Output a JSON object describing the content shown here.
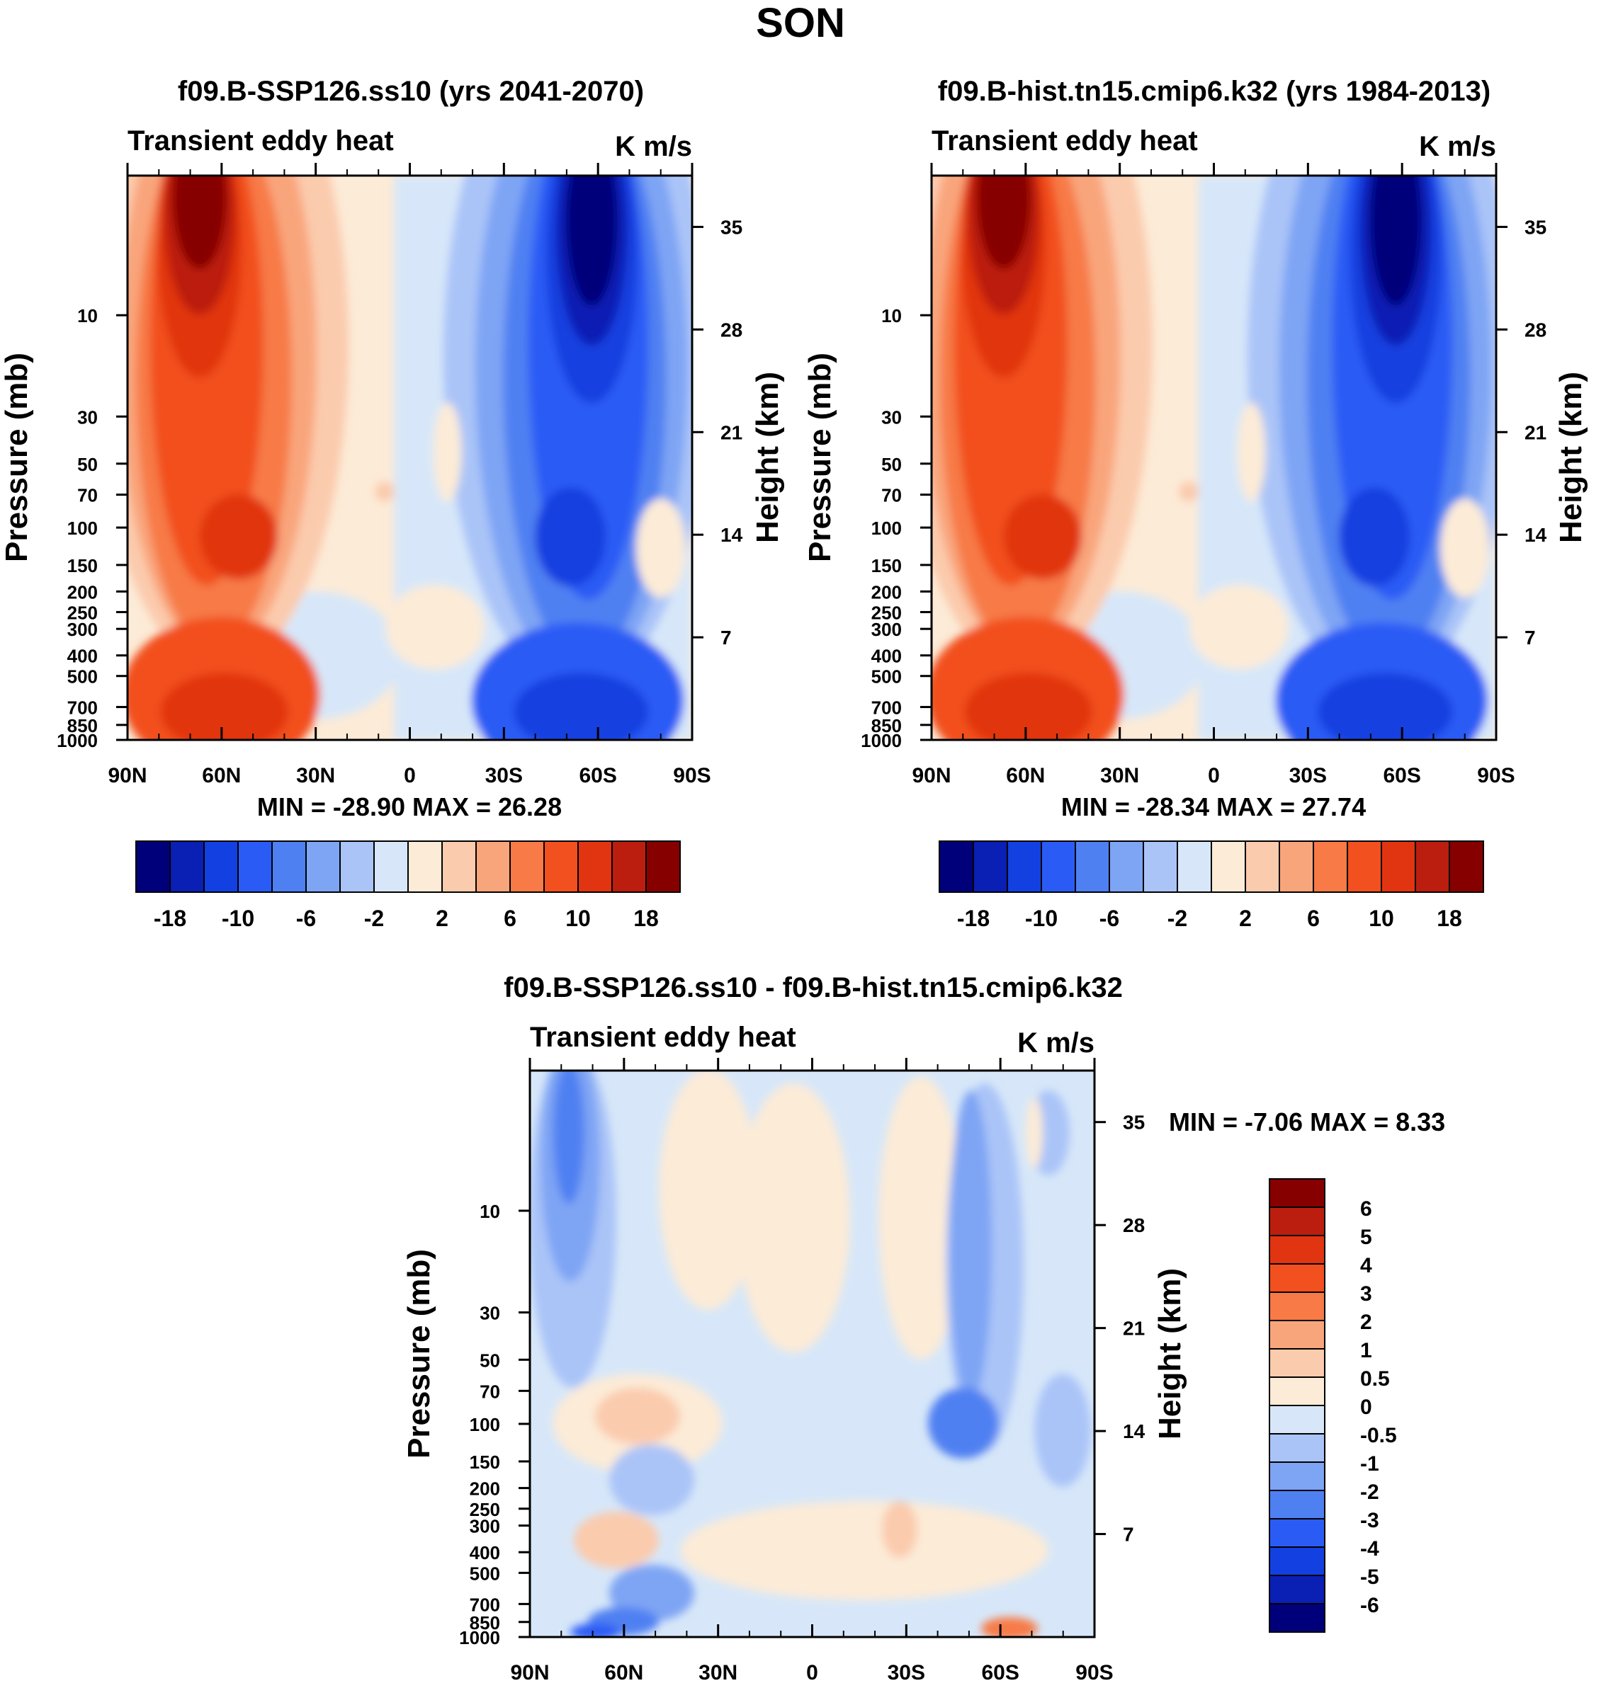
{
  "figure_title": "SON",
  "colors": {
    "diverging_16": [
      "#00007a",
      "#0a1fb4",
      "#1340e0",
      "#2a5cf5",
      "#4f80f2",
      "#7ea4f4",
      "#aac4f8",
      "#d7e7f9",
      "#fcebd7",
      "#fbcbad",
      "#f9a57c",
      "#f77a47",
      "#f2501f",
      "#e13411",
      "#bb1e0e",
      "#870000"
    ],
    "diff_14": [
      "#00007a",
      "#0a1fb4",
      "#1340e0",
      "#2a5cf5",
      "#4f80f2",
      "#7ea4f4",
      "#aac4f8",
      "#d7e7f9",
      "#fcebd7",
      "#fbcbad",
      "#f9a57c",
      "#f77a47",
      "#f2501f",
      "#e13411",
      "#bb1e0e",
      "#870000"
    ]
  },
  "chart_data": [
    {
      "type": "heatmap",
      "title": "f09.B-SSP126.ss10 (yrs 2041-2070)",
      "left_label": "Transient eddy heat",
      "units_label": "K m/s",
      "ylabel": "Pressure (mb)",
      "ylabel_right": "Height (km)",
      "x_ticks": [
        "90N",
        "60N",
        "30N",
        "0",
        "30S",
        "60S",
        "90S"
      ],
      "y_ticks": [
        "10",
        "30",
        "50",
        "70",
        "100",
        "150",
        "200",
        "250",
        "300",
        "400",
        "500",
        "700",
        "850",
        "1000"
      ],
      "y_ticks_right": [
        "35",
        "28",
        "21",
        "14",
        "7"
      ],
      "min_max": "MIN = -28.90  MAX =  26.28",
      "colorbar_labels": [
        "-18",
        "-10",
        "-6",
        "-2",
        "2",
        "6",
        "10",
        "18"
      ],
      "fields": {
        "nh": {
          "lat": 67,
          "amp": 26.28
        },
        "sh": {
          "lat": 58,
          "amp": -28.9
        }
      }
    },
    {
      "type": "heatmap",
      "title": "f09.B-hist.tn15.cmip6.k32 (yrs 1984-2013)",
      "left_label": "Transient eddy heat",
      "units_label": "K m/s",
      "ylabel": "Pressure (mb)",
      "ylabel_right": "Height (km)",
      "x_ticks": [
        "90N",
        "60N",
        "30N",
        "0",
        "30S",
        "60S",
        "90S"
      ],
      "y_ticks": [
        "10",
        "30",
        "50",
        "70",
        "100",
        "150",
        "200",
        "250",
        "300",
        "400",
        "500",
        "700",
        "850",
        "1000"
      ],
      "y_ticks_right": [
        "35",
        "28",
        "21",
        "14",
        "7"
      ],
      "min_max": "MIN = -28.34  MAX =  27.74",
      "colorbar_labels": [
        "-18",
        "-10",
        "-6",
        "-2",
        "2",
        "6",
        "10",
        "18"
      ],
      "fields": {
        "nh": {
          "lat": 67,
          "amp": 27.74
        },
        "sh": {
          "lat": 58,
          "amp": -28.34
        }
      }
    },
    {
      "type": "heatmap",
      "title": "f09.B-SSP126.ss10 - f09.B-hist.tn15.cmip6.k32",
      "left_label": "Transient eddy heat",
      "units_label": "K m/s",
      "ylabel": "Pressure (mb)",
      "ylabel_right": "Height (km)",
      "x_ticks": [
        "90N",
        "60N",
        "30N",
        "0",
        "30S",
        "60S",
        "90S"
      ],
      "y_ticks": [
        "10",
        "30",
        "50",
        "70",
        "100",
        "150",
        "200",
        "250",
        "300",
        "400",
        "500",
        "700",
        "850",
        "1000"
      ],
      "y_ticks_right": [
        "35",
        "28",
        "21",
        "14",
        "7"
      ],
      "min_max": "MIN =  -7.06  MAX =   8.33",
      "colorbar_labels": [
        "6",
        "5",
        "4",
        "3",
        "2",
        "1",
        "0.5",
        "0",
        "-0.5",
        "-1",
        "-2",
        "-3",
        "-4",
        "-5",
        "-6"
      ]
    }
  ]
}
